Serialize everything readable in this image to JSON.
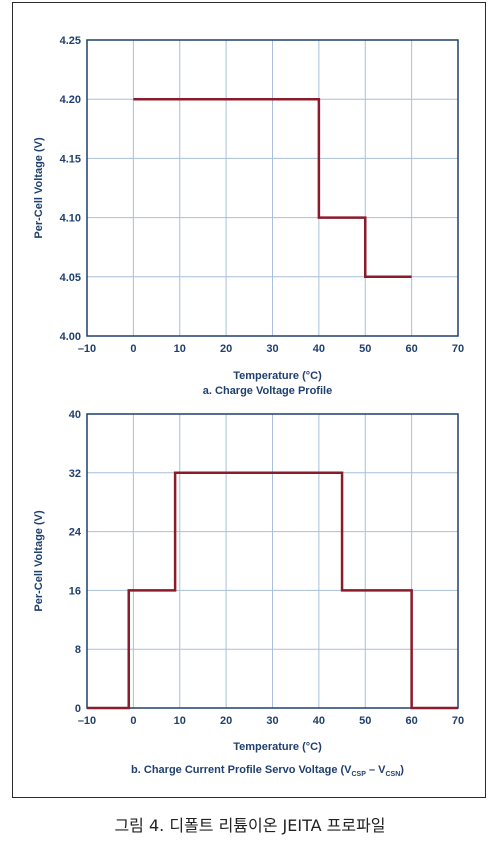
{
  "caption": "그림 4. 디폴트 리튬이온 JEITA 프로파일",
  "colors": {
    "axis": "#1f3f6e",
    "grid": "#a9bfdc",
    "line": "#8b1a2b",
    "text": "#1f3f6e"
  },
  "chart_data": [
    {
      "type": "line",
      "title": "a. Charge Voltage Profile",
      "xlabel": "Temperature (°C)",
      "ylabel": "Per-Cell Voltage (V)",
      "xlim": [
        -10,
        70
      ],
      "ylim": [
        4.0,
        4.25
      ],
      "x_ticks": [
        "–10",
        "0",
        "10",
        "20",
        "30",
        "40",
        "50",
        "60",
        "70"
      ],
      "y_ticks": [
        "4.00",
        "4.05",
        "4.10",
        "4.15",
        "4.20",
        "4.25"
      ],
      "grid": true,
      "series": [
        {
          "x": [
            0,
            40,
            40,
            50,
            50,
            60
          ],
          "y": [
            4.2,
            4.2,
            4.1,
            4.1,
            4.05,
            4.05
          ]
        }
      ]
    },
    {
      "type": "line",
      "title": "b. Charge Current Profile Servo Voltage (V",
      "title_sub1": "CSP",
      "title_mid": " – V",
      "title_sub2": "CSN",
      "title_end": ")",
      "xlabel": "Temperature (°C)",
      "ylabel": "Per-Cell Voltage (V)",
      "xlim": [
        -10,
        70
      ],
      "ylim": [
        0,
        40
      ],
      "x_ticks": [
        "–10",
        "0",
        "10",
        "20",
        "30",
        "40",
        "50",
        "60",
        "70"
      ],
      "y_ticks": [
        "0",
        "8",
        "16",
        "24",
        "32",
        "40"
      ],
      "grid": true,
      "series": [
        {
          "x": [
            -10,
            -1,
            -1,
            9,
            9,
            45,
            45,
            60,
            60,
            70
          ],
          "y": [
            0,
            0,
            16,
            16,
            32,
            32,
            16,
            16,
            0,
            0
          ]
        }
      ]
    }
  ]
}
